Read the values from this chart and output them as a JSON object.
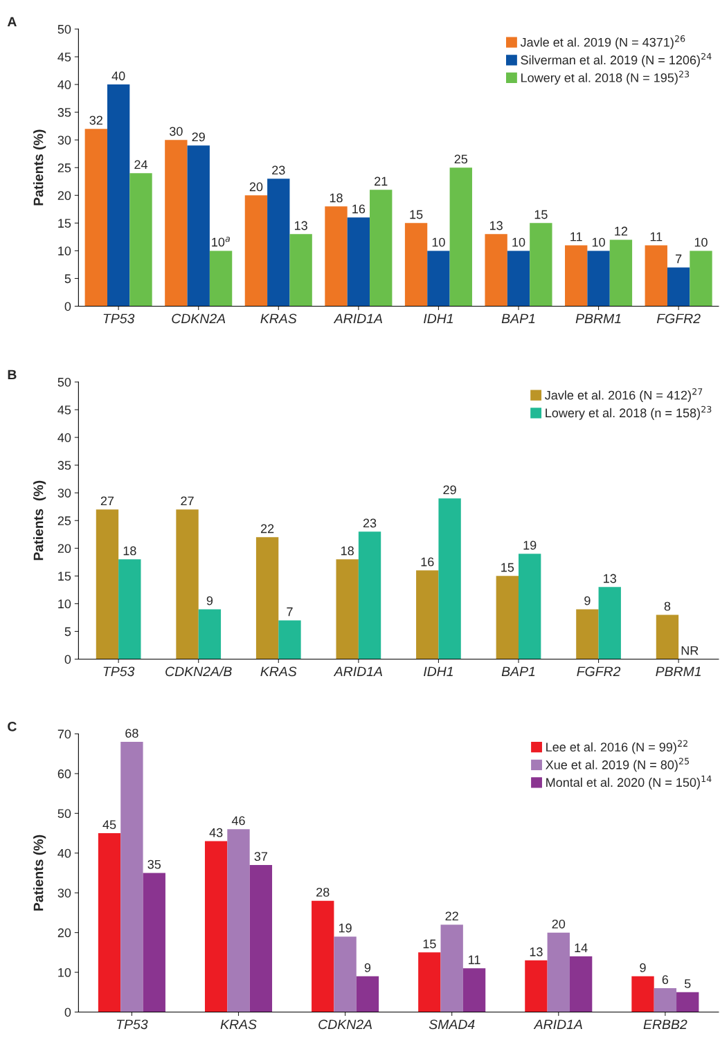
{
  "chart_data": [
    {
      "type": "bar",
      "title": "A",
      "ylabel": "Patients (%)",
      "categories": [
        "TP53",
        "CDKN2A",
        "KRAS",
        "ARID1A",
        "IDH1",
        "BAP1",
        "PBRM1",
        "FGFR2"
      ],
      "ylim": [
        0,
        50
      ],
      "yticks": [
        0,
        5,
        10,
        15,
        20,
        25,
        30,
        35,
        40,
        45,
        50
      ],
      "legend": "top right",
      "grid": false,
      "series": [
        {
          "name": "Javle et al. 2019 (N = 4371)$^{26}$",
          "color": "#ee7623",
          "values": [
            32,
            30,
            20,
            18,
            15,
            13,
            11,
            11
          ],
          "value_labels": [
            "32",
            "30",
            "20",
            "18",
            "15",
            "13",
            "11",
            "11"
          ]
        },
        {
          "name": "Silverman et al. 2019 (N = 1206)$^{24}$",
          "color": "#0a52a3",
          "values": [
            40,
            29,
            23,
            16,
            10,
            10,
            10,
            7
          ],
          "value_labels": [
            "40",
            "29",
            "23",
            "16",
            "10",
            "10",
            "10",
            "7"
          ]
        },
        {
          "name": "Lowery et al. 2018 (N = 195)$^{23}$",
          "color": "#6abf4b",
          "values": [
            24,
            10,
            13,
            21,
            25,
            15,
            12,
            10
          ],
          "value_labels": [
            "24",
            "10$^{a}$",
            "13",
            "21",
            "25",
            "15",
            "12",
            "10"
          ]
        }
      ]
    },
    {
      "type": "bar",
      "title": "B",
      "ylabel": "Patients  (%)",
      "categories": [
        "TP53",
        "CDKN2A/B",
        "KRAS",
        "ARID1A",
        "IDH1",
        "BAP1",
        "FGFR2",
        "PBRM1"
      ],
      "ylim": [
        0,
        50
      ],
      "yticks": [
        0,
        5,
        10,
        15,
        20,
        25,
        30,
        35,
        40,
        45,
        50
      ],
      "legend": "top right",
      "grid": false,
      "series": [
        {
          "name": "Javle et al. 2016 (N = 412)$^{27}$",
          "color": "#bc9527",
          "values": [
            27,
            27,
            22,
            18,
            16,
            15,
            9,
            8
          ],
          "value_labels": [
            "27",
            "27",
            "22",
            "18",
            "16",
            "15",
            "9",
            "8"
          ]
        },
        {
          "name": "Lowery et al. 2018 (n = 158)$^{23}$",
          "color": "#21b995",
          "values": [
            18,
            9,
            7,
            23,
            29,
            19,
            13,
            null
          ],
          "value_labels": [
            "18",
            "9",
            "7",
            "23",
            "29",
            "19",
            "13",
            "NR"
          ]
        }
      ]
    },
    {
      "type": "bar",
      "title": "C",
      "ylabel": "Patients (%)",
      "categories": [
        "TP53",
        "KRAS",
        "CDKN2A",
        "SMAD4",
        "ARID1A",
        "ERBB2"
      ],
      "ylim": [
        0,
        70
      ],
      "yticks": [
        0,
        10,
        20,
        30,
        40,
        50,
        60,
        70
      ],
      "legend": "top right",
      "grid": false,
      "series": [
        {
          "name": "Lee et al. 2016 (N = 99)$^{22}$",
          "color": "#ed1c24",
          "values": [
            45,
            43,
            28,
            15,
            13,
            9
          ],
          "value_labels": [
            "45",
            "43",
            "28",
            "15",
            "13",
            "9"
          ]
        },
        {
          "name": "Xue et al. 2019 (N = 80)$^{25}$",
          "color": "#a57bb7",
          "values": [
            68,
            46,
            19,
            22,
            20,
            6
          ],
          "value_labels": [
            "68",
            "46",
            "19",
            "22",
            "20",
            "6"
          ]
        },
        {
          "name": "Montal et al. 2020 (N = 150)$^{14}$",
          "color": "#8a3490",
          "values": [
            35,
            37,
            9,
            11,
            14,
            5
          ],
          "value_labels": [
            "35",
            "37",
            "9",
            "11",
            "14",
            "5"
          ]
        }
      ]
    }
  ]
}
